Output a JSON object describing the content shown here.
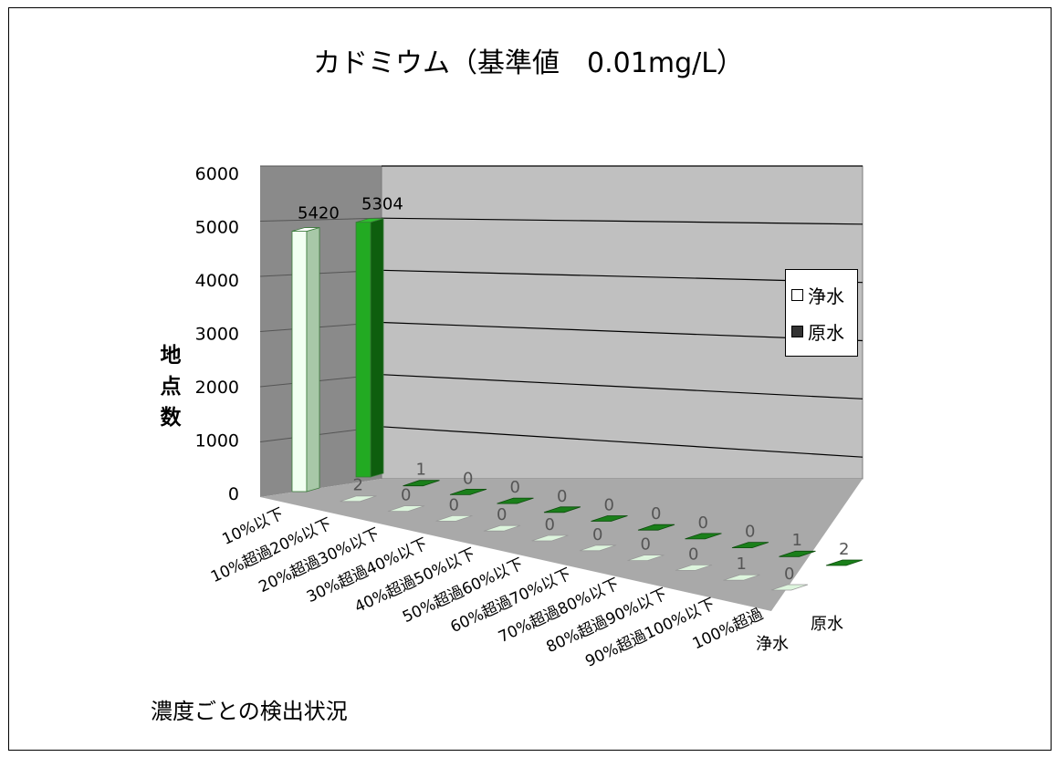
{
  "chart_data": {
    "type": "bar",
    "title": "カドミウム（基準値　0.01mg/L）",
    "ylabel": "地点数",
    "footnote": "濃度ごとの検出状況",
    "categories": [
      "10%以下",
      "10%超過20%以下",
      "20%超過30%以下",
      "30%超過40%以下",
      "40%超過50%以下",
      "50%超過60%以下",
      "60%超過70%以下",
      "70%超過80%以下",
      "80%超過90%以下",
      "90%超過100%以下",
      "100%超過"
    ],
    "series": [
      {
        "name": "浄水",
        "values": [
          5420,
          2,
          0,
          0,
          0,
          0,
          0,
          0,
          0,
          1,
          0
        ],
        "color": "#e6ffe6"
      },
      {
        "name": "原水",
        "values": [
          5304,
          1,
          0,
          0,
          0,
          0,
          0,
          0,
          0,
          1,
          2
        ],
        "color": "#1f8a1f"
      }
    ],
    "yticks": [
      "0",
      "1000",
      "2000",
      "3000",
      "4000",
      "5000",
      "6000"
    ],
    "ylim": [
      0,
      6000
    ],
    "depth_labels": [
      "浄水",
      "原水"
    ],
    "grid": true,
    "legend": "right"
  }
}
